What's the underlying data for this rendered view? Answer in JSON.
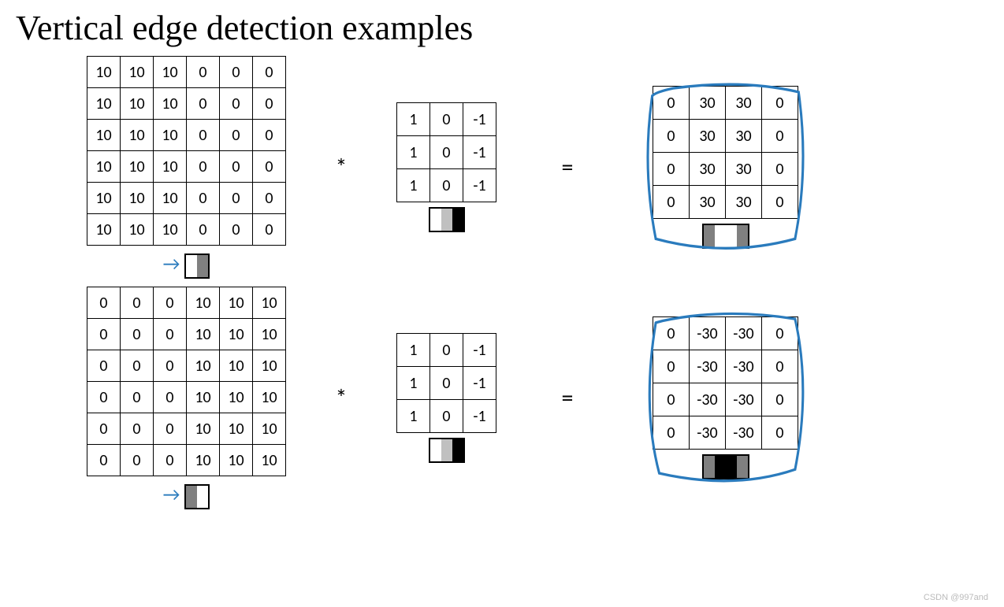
{
  "title": "Vertical edge detection examples",
  "operator_conv": "*",
  "operator_eq": "=",
  "watermark": "CSDN @997and",
  "colors": {
    "white": "#ffffff",
    "lightgray": "#c0c0c0",
    "midgray": "#808080",
    "darkgray": "#404040",
    "black": "#000000",
    "ink": "#2a7bbd"
  },
  "example1": {
    "input": [
      [
        10,
        10,
        10,
        0,
        0,
        0
      ],
      [
        10,
        10,
        10,
        0,
        0,
        0
      ],
      [
        10,
        10,
        10,
        0,
        0,
        0
      ],
      [
        10,
        10,
        10,
        0,
        0,
        0
      ],
      [
        10,
        10,
        10,
        0,
        0,
        0
      ],
      [
        10,
        10,
        10,
        0,
        0,
        0
      ]
    ],
    "input_swatch": [
      "#ffffff",
      "#808080"
    ],
    "kernel": [
      [
        1,
        0,
        -1
      ],
      [
        1,
        0,
        -1
      ],
      [
        1,
        0,
        -1
      ]
    ],
    "kernel_swatch": [
      "#ffffff",
      "#c0c0c0",
      "#000000"
    ],
    "output": [
      [
        0,
        30,
        30,
        0
      ],
      [
        0,
        30,
        30,
        0
      ],
      [
        0,
        30,
        30,
        0
      ],
      [
        0,
        30,
        30,
        0
      ]
    ],
    "output_swatch": [
      "#808080",
      "#ffffff",
      "#ffffff",
      "#808080"
    ]
  },
  "example2": {
    "input": [
      [
        0,
        0,
        0,
        10,
        10,
        10
      ],
      [
        0,
        0,
        0,
        10,
        10,
        10
      ],
      [
        0,
        0,
        0,
        10,
        10,
        10
      ],
      [
        0,
        0,
        0,
        10,
        10,
        10
      ],
      [
        0,
        0,
        0,
        10,
        10,
        10
      ],
      [
        0,
        0,
        0,
        10,
        10,
        10
      ]
    ],
    "input_swatch": [
      "#808080",
      "#ffffff"
    ],
    "kernel": [
      [
        1,
        0,
        -1
      ],
      [
        1,
        0,
        -1
      ],
      [
        1,
        0,
        -1
      ]
    ],
    "kernel_swatch": [
      "#ffffff",
      "#c0c0c0",
      "#000000"
    ],
    "output": [
      [
        0,
        -30,
        -30,
        0
      ],
      [
        0,
        -30,
        -30,
        0
      ],
      [
        0,
        -30,
        -30,
        0
      ],
      [
        0,
        -30,
        -30,
        0
      ]
    ],
    "output_swatch": [
      "#808080",
      "#000000",
      "#000000",
      "#808080"
    ]
  },
  "layout": {
    "cell_font_size": 20,
    "title_font_size": 44,
    "op_font_size": 30
  }
}
